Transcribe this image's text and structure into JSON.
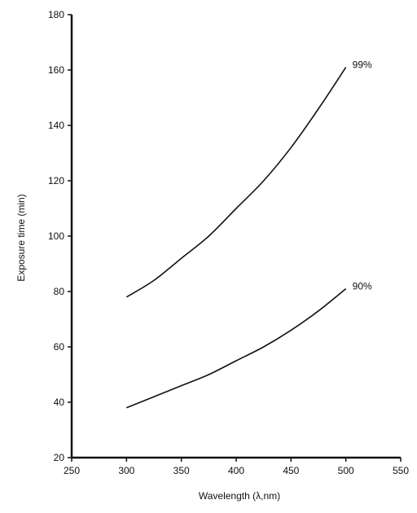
{
  "chart_data": {
    "type": "line",
    "title": "",
    "xlabel": "Wavelength  (λ,nm)",
    "ylabel": "Exposure time (min)",
    "xlim": [
      250,
      550
    ],
    "ylim": [
      20,
      180
    ],
    "xticks": [
      250,
      300,
      350,
      400,
      450,
      500,
      550
    ],
    "yticks": [
      20,
      40,
      60,
      80,
      100,
      120,
      140,
      160,
      180
    ],
    "grid": false,
    "legend": "none",
    "colors": {
      "line": "#111111",
      "axis": "#111111"
    },
    "series": [
      {
        "name": "99%",
        "x": [
          300,
          325,
          350,
          375,
          400,
          425,
          450,
          475,
          500
        ],
        "y": [
          78,
          84,
          92,
          100,
          110,
          120,
          132,
          146,
          161
        ]
      },
      {
        "name": "90%",
        "x": [
          300,
          325,
          350,
          375,
          400,
          425,
          450,
          475,
          500
        ],
        "y": [
          38,
          42,
          46,
          50,
          55,
          60,
          66,
          73,
          81
        ]
      }
    ]
  }
}
